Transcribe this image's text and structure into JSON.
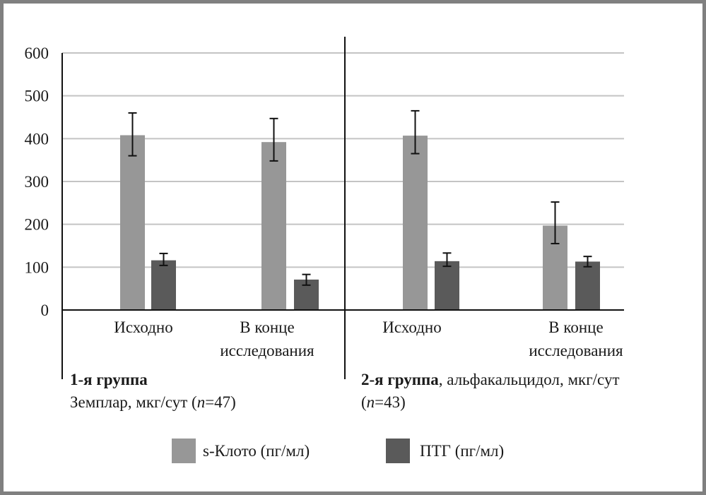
{
  "chart_data": {
    "type": "bar",
    "ylim": [
      0,
      600
    ],
    "yticks": [
      "0",
      "100",
      "200",
      "300",
      "400",
      "500",
      "600"
    ],
    "groups": [
      {
        "label_bold": "1-я группа",
        "label_rest": "",
        "label_line2_pre": "Земплар, мкг/сут (",
        "label_line2_n": "n",
        "label_line2_post": "=47)",
        "categories": [
          {
            "line1": "Исходно",
            "line2": ""
          },
          {
            "line1": "В конце",
            "line2": "исследования"
          }
        ]
      },
      {
        "label_bold": "2-я группа",
        "label_rest": ", альфакальцидол, мкг/сут",
        "label_line2_pre": "(",
        "label_line2_n": "n",
        "label_line2_post": "=43)",
        "categories": [
          {
            "line1": "Исходно",
            "line2": ""
          },
          {
            "line1": "В конце",
            "line2": "исследования"
          }
        ]
      }
    ],
    "series": [
      {
        "name": "s-Клото (пг/мл)",
        "color": "#979797",
        "values": [
          408,
          392,
          407,
          197
        ],
        "err_low": [
          360,
          348,
          365,
          155
        ],
        "err_high": [
          460,
          447,
          465,
          252
        ]
      },
      {
        "name": "ПТГ (пг/мл)",
        "color": "#5a5a5a",
        "values": [
          116,
          71,
          114,
          113
        ],
        "err_low": [
          104,
          58,
          102,
          101
        ],
        "err_high": [
          132,
          83,
          133,
          125
        ]
      }
    ],
    "grid": true,
    "legend": "bottom"
  }
}
